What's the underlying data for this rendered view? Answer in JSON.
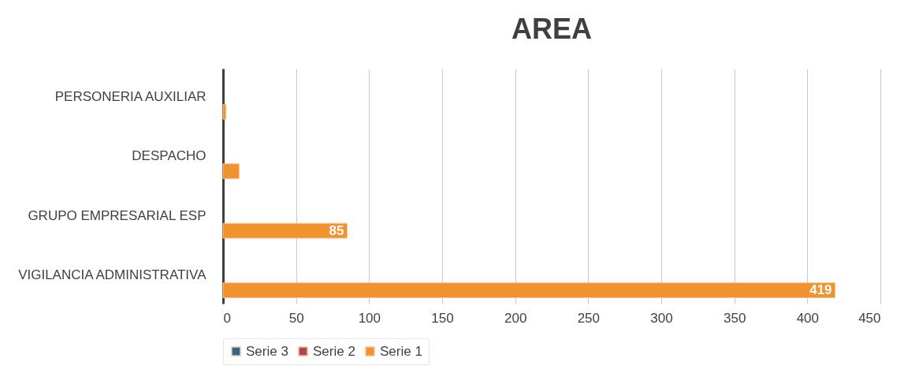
{
  "chart_data": {
    "type": "bar",
    "orientation": "horizontal",
    "title": "AREA",
    "categories": [
      "PERSONERIA AUXILIAR",
      "DESPACHO",
      "GRUPO EMPRESARIAL ESP",
      "VIGILANCIA ADMINISTRATIVA"
    ],
    "series": [
      {
        "name": "Serie 3",
        "color": "#2f6690",
        "values": [
          null,
          null,
          null,
          null
        ]
      },
      {
        "name": "Serie 2",
        "color": "#b0444f",
        "values": [
          null,
          null,
          null,
          null
        ]
      },
      {
        "name": "Serie 1",
        "color": "#f0922e",
        "values": [
          2,
          11,
          85,
          419
        ],
        "value_labels": [
          null,
          null,
          "85",
          "419"
        ]
      }
    ],
    "xlim": [
      0,
      450
    ],
    "xticks": [
      0,
      50,
      100,
      150,
      200,
      250,
      300,
      350,
      400,
      450
    ],
    "grid": "x",
    "legend": "bottom"
  }
}
